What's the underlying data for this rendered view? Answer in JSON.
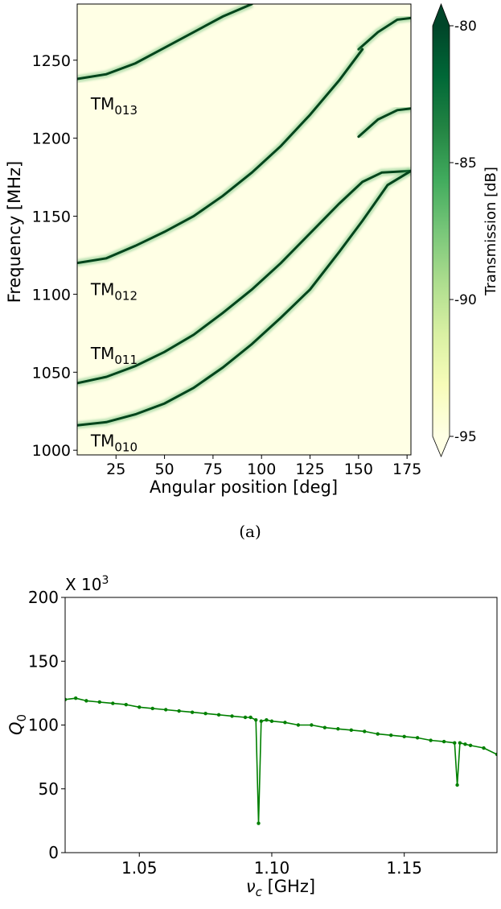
{
  "chart_data": [
    {
      "type": "heatmap",
      "xlabel": "Angular position [deg]",
      "ylabel": "Frequency [MHz]",
      "xlim": [
        5,
        177
      ],
      "ylim": [
        997,
        1286
      ],
      "xticks": [
        25,
        50,
        75,
        100,
        125,
        150,
        175
      ],
      "yticks": [
        1000,
        1050,
        1100,
        1150,
        1200,
        1250
      ],
      "colorbar": {
        "label": "Transmission [dB]",
        "range": [
          -95,
          -80
        ],
        "ticks": [
          "-80",
          "-85",
          "-90",
          "-95"
        ],
        "cmap": "Greens",
        "colors": [
          "#ffffe5",
          "#f7fcb9",
          "#d9f0a3",
          "#addd8e",
          "#78c679",
          "#41ab5d",
          "#238443",
          "#006837",
          "#004529"
        ]
      },
      "mode_labels": [
        {
          "base": "TM",
          "sub": "013",
          "freq_mhz": 1222
        },
        {
          "base": "TM",
          "sub": "012",
          "freq_mhz": 1103
        },
        {
          "base": "TM",
          "sub": "011",
          "freq_mhz": 1062
        },
        {
          "base": "TM",
          "sub": "010",
          "freq_mhz": 1006
        }
      ],
      "series": [
        {
          "x": [
            5,
            20,
            35,
            50,
            65,
            80,
            95
          ],
          "y": [
            1238,
            1241,
            1248,
            1258,
            1268,
            1278,
            1286
          ]
        },
        {
          "x": [
            150,
            160,
            170,
            177
          ],
          "y": [
            1257,
            1268,
            1276,
            1277
          ]
        },
        {
          "x": [
            5,
            20,
            35,
            50,
            65,
            80,
            95,
            110,
            125,
            140,
            152
          ],
          "y": [
            1120,
            1123,
            1131,
            1140,
            1150,
            1163,
            1178,
            1195,
            1215,
            1237,
            1257
          ]
        },
        {
          "x": [
            150,
            160,
            170,
            177
          ],
          "y": [
            1201,
            1212,
            1218,
            1219
          ]
        },
        {
          "x": [
            5,
            20,
            35,
            50,
            65,
            80,
            95,
            110,
            125,
            140,
            152,
            162,
            177
          ],
          "y": [
            1043,
            1047,
            1054,
            1063,
            1074,
            1088,
            1103,
            1120,
            1139,
            1158,
            1172,
            1178,
            1179
          ]
        },
        {
          "x": [
            5,
            20,
            35,
            50,
            65,
            80,
            95,
            110,
            125,
            140,
            152,
            165,
            177
          ],
          "y": [
            1016,
            1018,
            1023,
            1030,
            1040,
            1053,
            1068,
            1085,
            1103,
            1127,
            1147,
            1170,
            1179
          ]
        }
      ]
    },
    {
      "type": "line",
      "xlabel": "ν",
      "xlabel_sub": "c",
      "xlabel_unit": " [GHz]",
      "ylabel": "Q",
      "ylabel_sub": "0",
      "scale_text": "X 10",
      "scale_exp": "3",
      "xlim": [
        1.022,
        1.185
      ],
      "ylim": [
        0,
        200
      ],
      "xticks": [
        1.05,
        1.1,
        1.15
      ],
      "xtick_labels": [
        "1.05",
        "1.10",
        "1.15"
      ],
      "yticks": [
        0,
        50,
        100,
        150,
        200
      ],
      "color": "#008000",
      "x": [
        1.022,
        1.026,
        1.03,
        1.035,
        1.04,
        1.045,
        1.05,
        1.055,
        1.06,
        1.065,
        1.07,
        1.075,
        1.08,
        1.085,
        1.09,
        1.092,
        1.094,
        1.095,
        1.096,
        1.098,
        1.1,
        1.105,
        1.11,
        1.115,
        1.12,
        1.125,
        1.13,
        1.135,
        1.14,
        1.145,
        1.15,
        1.155,
        1.16,
        1.165,
        1.169,
        1.17,
        1.171,
        1.173,
        1.175,
        1.18,
        1.185
      ],
      "y": [
        120,
        121,
        119,
        118,
        117,
        116,
        114,
        113,
        112,
        111,
        110,
        109,
        108,
        107,
        106,
        106,
        104,
        23,
        103,
        104,
        103,
        102,
        100,
        100,
        98,
        97,
        96,
        95,
        93,
        92,
        91,
        90,
        88,
        87,
        86,
        53,
        86,
        85,
        84,
        82,
        77
      ]
    }
  ],
  "caption_a": "(a)"
}
